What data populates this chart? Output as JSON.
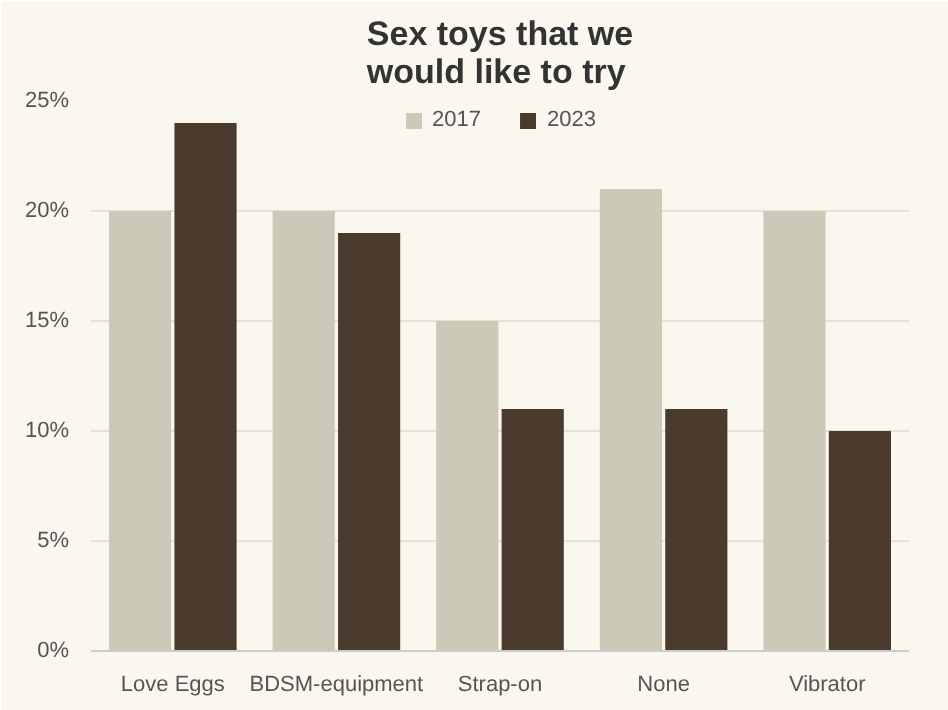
{
  "chart_data": {
    "type": "bar",
    "title": "Sex toys that we would like to try",
    "categories": [
      "Love Eggs",
      "BDSM-equipment",
      "Strap-on",
      "None",
      "Vibrator"
    ],
    "series": [
      {
        "name": "2017",
        "color": "#cdc9b9",
        "values": [
          20,
          20,
          15,
          21,
          20
        ]
      },
      {
        "name": "2023",
        "color": "#4a3b2e",
        "values": [
          24,
          19,
          11,
          11,
          10
        ]
      }
    ],
    "ylim": [
      0,
      25
    ],
    "yticks": [
      {
        "value": 0,
        "label": "0%"
      },
      {
        "value": 5,
        "label": "5%"
      },
      {
        "value": 10,
        "label": "10%"
      },
      {
        "value": 15,
        "label": "15%"
      },
      {
        "value": 20,
        "label": "20%"
      },
      {
        "value": 25,
        "label": "25%"
      }
    ],
    "grid": "y",
    "legend": "top"
  }
}
